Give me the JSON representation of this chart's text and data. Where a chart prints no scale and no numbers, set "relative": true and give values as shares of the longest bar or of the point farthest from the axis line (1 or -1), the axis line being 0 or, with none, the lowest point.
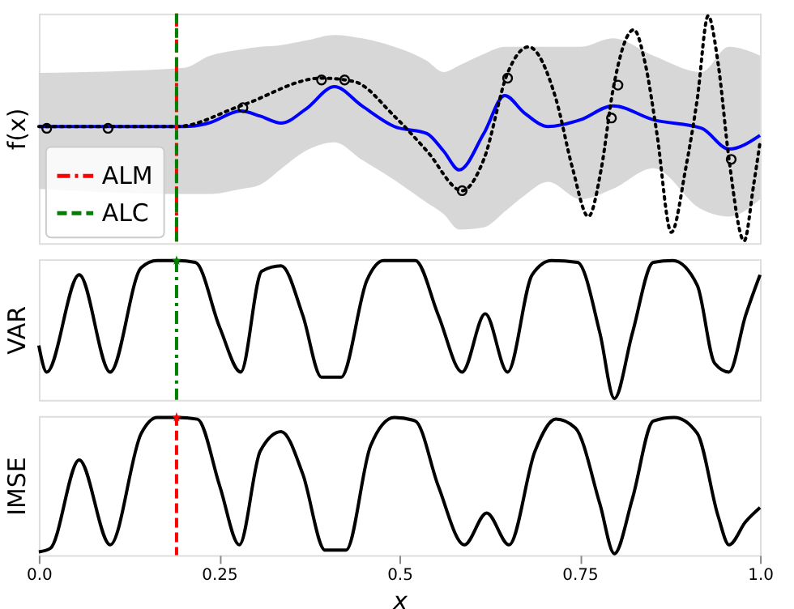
{
  "chart_data": [
    {
      "type": "line",
      "relative": true,
      "ylabel": "f(x)",
      "xlim": [
        0,
        1
      ],
      "tick_labels": false,
      "legend": "bottom left",
      "series": [
        {
          "color": "#0000ff",
          "line_style": "solid",
          "x": [
            0,
            0.05,
            0.1,
            0.15,
            0.202,
            0.235,
            0.28,
            0.307,
            0.336,
            0.37,
            0.41,
            0.448,
            0.493,
            0.538,
            0.561,
            0.583,
            0.617,
            0.646,
            0.673,
            0.706,
            0.751,
            0.796,
            0.852,
            0.919,
            0.957,
            1
          ],
          "values": [
            0.508,
            0.508,
            0.508,
            0.508,
            0.508,
            0.523,
            0.577,
            0.554,
            0.523,
            0.585,
            0.685,
            0.6,
            0.508,
            0.477,
            0.4,
            0.315,
            0.477,
            0.646,
            0.569,
            0.508,
            0.538,
            0.6,
            0.538,
            0.5,
            0.408,
            0.469
          ],
          "lower": [
            0.231,
            null,
            null,
            null,
            0.208,
            0.208,
            0.23,
            0.25,
            0.32,
            0.4,
            0.438,
            0.36,
            0.27,
            0.17,
            0.12,
            0.05,
            0.06,
            0.13,
            0.2,
            0.262,
            0.185,
            0.231,
            0.323,
            0.14,
            0.108,
            0.185
          ],
          "upper": [
            0.746,
            null,
            null,
            null,
            0.769,
            0.82,
            0.85,
            0.862,
            0.87,
            0.89,
            0.915,
            0.9,
            0.862,
            0.8,
            0.75,
            0.78,
            0.83,
            0.862,
            0.862,
            0.862,
            0.862,
            0.9,
            0.823,
            0.75,
            0.862,
            0.823
          ]
        },
        {
          "color": "#000000",
          "line_style": "dotted",
          "x": [
            0,
            0.101,
            0.191,
            0.28,
            0.392,
            0.437,
            0.493,
            0.538,
            0.587,
            0.617,
            0.65,
            0.679,
            0.717,
            0.74,
            0.762,
            0.78,
            0.796,
            0.825,
            0.841,
            0.857,
            0.877,
            0.897,
            0.913,
            0.928,
            0.942,
            0.957,
            0.978,
            0.991,
            1
          ],
          "values": [
            0.508,
            0.508,
            0.508,
            0.6,
            0.723,
            0.708,
            0.554,
            0.4,
            0.223,
            0.362,
            0.746,
            0.862,
            0.631,
            0.323,
            0.108,
            0.323,
            0.669,
            0.938,
            0.785,
            0.477,
            0.038,
            0.323,
            0.631,
            1,
            0.785,
            0.362,
            0,
            0.246,
            0.438
          ]
        },
        {
          "type": "scatter",
          "color": "#000000",
          "marker": "circle",
          "x": [
            0.011,
            0.096,
            0.283,
            0.392,
            0.424,
            0.587,
            0.65,
            0.794,
            0.803,
            0.96
          ],
          "values": [
            0.5,
            0.5,
            0.592,
            0.715,
            0.715,
            0.223,
            0.723,
            0.546,
            0.692,
            0.362
          ]
        }
      ],
      "ref_lines": [
        {
          "axis": "x",
          "value": 0.191,
          "label": "ALM",
          "color": "#ff0000",
          "line_style": "dashdot"
        },
        {
          "axis": "x",
          "value": 0.191,
          "label": "ALC",
          "color": "#008000",
          "line_style": "dashed"
        }
      ]
    },
    {
      "type": "line",
      "relative": true,
      "ylabel": "VAR",
      "xlim": [
        0,
        1
      ],
      "tick_labels": false,
      "series": [
        {
          "color": "#000000",
          "line_style": "solid",
          "x": [
            0,
            0.011,
            0.056,
            0.099,
            0.142,
            0.164,
            0.191,
            0.217,
            0.251,
            0.28,
            0.309,
            0.336,
            0.366,
            0.392,
            0.419,
            0.455,
            0.478,
            0.522,
            0.554,
            0.587,
            0.619,
            0.65,
            0.684,
            0.711,
            0.747,
            0.778,
            0.798,
            0.823,
            0.852,
            0.879,
            0.913,
            0.937,
            0.957,
            0.98,
            1
          ],
          "values": [
            0.385,
            0.192,
            0.897,
            0.192,
            0.949,
            1,
            1,
            0.987,
            0.513,
            0.192,
            0.923,
            0.962,
            0.603,
            0.154,
            0.154,
            0.859,
            1,
            1,
            0.603,
            0.192,
            0.615,
            0.192,
            0.897,
            1,
            0.987,
            0.474,
            0,
            0.474,
            0.987,
            1,
            0.821,
            0.256,
            0.192,
            0.603,
            0.897
          ]
        },
        {
          "type": "scatter",
          "color": "#008000",
          "marker": "star",
          "x": [
            0.191
          ],
          "values": [
            1
          ]
        }
      ],
      "ref_lines": [
        {
          "axis": "x",
          "value": 0.191,
          "color": "#008000",
          "line_style": "dashdot"
        }
      ]
    },
    {
      "type": "line",
      "relative": true,
      "ylabel": "IMSE",
      "xlabel": "x",
      "xlim": [
        0,
        1
      ],
      "tick_labels": "x",
      "xticks": [
        {
          "value": 0,
          "label": "0.0"
        },
        0.25,
        0.5,
        0.75,
        {
          "value": 1,
          "label": "1.0"
        }
      ],
      "series": [
        {
          "color": "#000000",
          "line_style": "solid",
          "x": [
            0,
            0.016,
            0.056,
            0.099,
            0.142,
            0.164,
            0.191,
            0.22,
            0.251,
            0.278,
            0.307,
            0.336,
            0.366,
            0.397,
            0.426,
            0.46,
            0.493,
            0.522,
            0.554,
            0.59,
            0.621,
            0.652,
            0.688,
            0.717,
            0.744,
            0.778,
            0.798,
            0.823,
            0.852,
            0.881,
            0.913,
            0.942,
            0.957,
            0.98,
            1
          ],
          "values": [
            0.013,
            0.039,
            0.688,
            0.065,
            0.883,
            1,
            1,
            0.987,
            0.494,
            0.065,
            0.753,
            0.896,
            0.584,
            0.026,
            0.026,
            0.792,
            1,
            0.974,
            0.494,
            0.065,
            0.299,
            0.065,
            0.753,
            0.987,
            0.922,
            0.364,
            0,
            0.403,
            0.974,
            1,
            0.883,
            0.273,
            0.065,
            0.234,
            0.338
          ]
        },
        {
          "type": "scatter",
          "color": "#ff0000",
          "marker": "star",
          "x": [
            0.191
          ],
          "values": [
            1
          ]
        }
      ],
      "ref_lines": [
        {
          "axis": "x",
          "value": 0.191,
          "color": "#ff0000",
          "line_style": "dashed"
        }
      ]
    }
  ]
}
